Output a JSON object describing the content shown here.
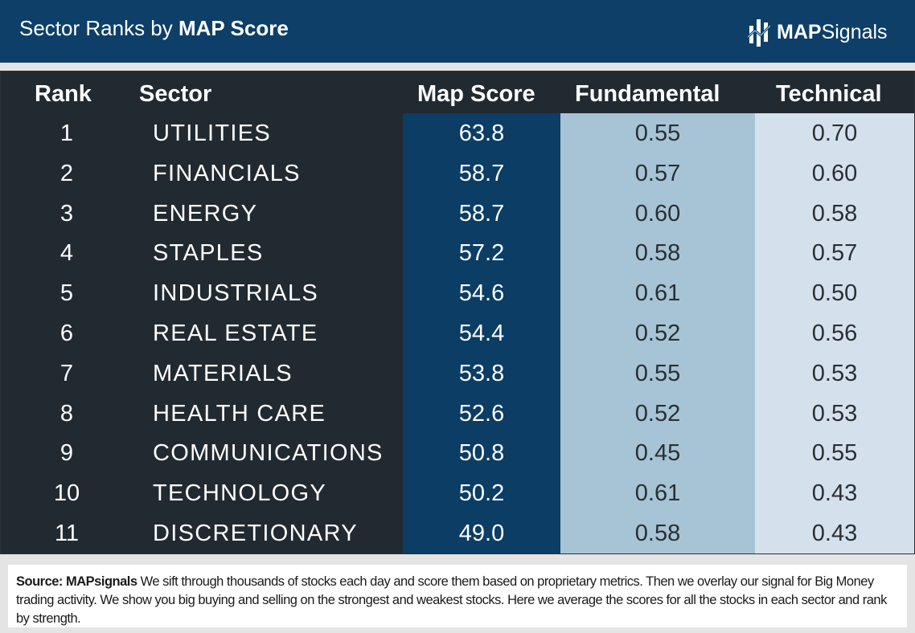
{
  "header": {
    "title_prefix": "Sector Ranks by ",
    "title_bold": "MAP Score",
    "logo_bold": "MAP",
    "logo_rest": "Signals",
    "logo_icon": "map-signals-logo-icon"
  },
  "table": {
    "headers": {
      "rank": "Rank",
      "sector": "Sector",
      "map_score": "Map Score",
      "fundamental": "Fundamental",
      "technical": "Technical"
    },
    "rows": [
      {
        "rank": "1",
        "sector": "UTILITIES",
        "map_score": "63.8",
        "fundamental": "0.55",
        "technical": "0.70"
      },
      {
        "rank": "2",
        "sector": "FINANCIALS",
        "map_score": "58.7",
        "fundamental": "0.57",
        "technical": "0.60"
      },
      {
        "rank": "3",
        "sector": "ENERGY",
        "map_score": "58.7",
        "fundamental": "0.60",
        "technical": "0.58"
      },
      {
        "rank": "4",
        "sector": "STAPLES",
        "map_score": "57.2",
        "fundamental": "0.58",
        "technical": "0.57"
      },
      {
        "rank": "5",
        "sector": "INDUSTRIALS",
        "map_score": "54.6",
        "fundamental": "0.61",
        "technical": "0.50"
      },
      {
        "rank": "6",
        "sector": "REAL ESTATE",
        "map_score": "54.4",
        "fundamental": "0.52",
        "technical": "0.56"
      },
      {
        "rank": "7",
        "sector": "MATERIALS",
        "map_score": "53.8",
        "fundamental": "0.55",
        "technical": "0.53"
      },
      {
        "rank": "8",
        "sector": "HEALTH CARE",
        "map_score": "52.6",
        "fundamental": "0.52",
        "technical": "0.53"
      },
      {
        "rank": "9",
        "sector": "COMMUNICATIONS",
        "map_score": "50.8",
        "fundamental": "0.45",
        "technical": "0.55"
      },
      {
        "rank": "10",
        "sector": "TECHNOLOGY",
        "map_score": "50.2",
        "fundamental": "0.61",
        "technical": "0.43"
      },
      {
        "rank": "11",
        "sector": "DISCRETIONARY",
        "map_score": "49.0",
        "fundamental": "0.58",
        "technical": "0.43"
      }
    ]
  },
  "footer": {
    "source_label": "Source:  MAPsignals",
    "text": " We sift through thousands of stocks each day and score them based on proprietary metrics. Then we overlay our signal for Big Money trading activity. We show you big buying and selling on the strongest and weakest stocks. Here we average the scores for all the stocks in each sector and rank by strength."
  },
  "colors": {
    "header_bg": "#0d3f68",
    "table_bg": "#222a31",
    "map_score_col": "#0b3d65",
    "fundamental_col": "#a6c4d5",
    "technical_col": "#d4e1ed"
  }
}
